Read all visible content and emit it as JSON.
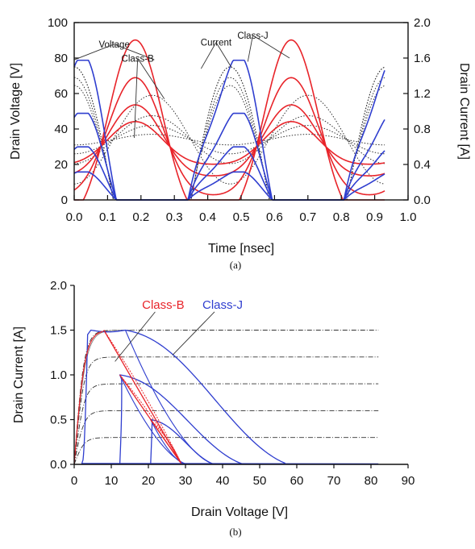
{
  "colors": {
    "class_b": "#e8242a",
    "class_j": "#2f3ecf",
    "reference": "#333333",
    "axis": "#111111"
  },
  "chart_data": [
    {
      "id": "a",
      "type": "line",
      "caption": "(a)",
      "xlabel": "Time [nsec]",
      "ylabel": "Drain Voltage [V]",
      "y2label": "Drain Current [A]",
      "xlim": [
        0,
        1.0
      ],
      "ylim": [
        0,
        100
      ],
      "y2lim": [
        0,
        2.0
      ],
      "xticks": [
        "0.0",
        "0.1",
        "0.2",
        "0.3",
        "0.4",
        "0.5",
        "0.6",
        "0.7",
        "0.8",
        "0.9",
        "1.0"
      ],
      "yticks": [
        "0",
        "20",
        "40",
        "60",
        "80",
        "100"
      ],
      "y2ticks": [
        "0.0",
        "0.4",
        "0.8",
        "1.2",
        "1.6",
        "2.0"
      ],
      "grid": false,
      "period_ns": 0.467,
      "x_end_ns": 0.93,
      "series": [
        {
          "group": "class_b_voltage",
          "style": "dotted",
          "axis": "left",
          "offset_ns": 0.233,
          "base": 34,
          "amplitudes": [
            25,
            13.5,
            8,
            3
          ]
        },
        {
          "group": "class_b_current",
          "style": "dotted",
          "axis": "right",
          "offset_ns": 0.0,
          "peak": 1.5,
          "half_width_ns": 0.117,
          "levels": [
            1.0,
            0.6,
            0.3,
            0.0
          ]
        },
        {
          "group": "class_j_voltage",
          "style": "solid",
          "axis": "left",
          "offset_ns": 0.183,
          "base": 30,
          "amplitudes": [
            51,
            33,
            20,
            12
          ]
        },
        {
          "group": "class_j_current",
          "style": "solid",
          "axis": "right",
          "offset_ns": 0.0,
          "peak": 1.5,
          "levels": [
            1.0,
            0.6,
            0.3,
            0.0
          ]
        }
      ],
      "annotations": [
        {
          "text": "Voltage",
          "at": [
            0.12,
            86
          ],
          "targets": [
            [
              0.0,
              79
            ],
            [
              0.24,
              79
            ]
          ]
        },
        {
          "text": "Class-B",
          "at": [
            0.19,
            78
          ],
          "targets": [
            [
              0.27,
              57
            ],
            [
              0.18,
              35
            ]
          ]
        },
        {
          "text": "Current",
          "at": [
            0.425,
            87
          ],
          "targets": [
            [
              0.38,
              74
            ],
            [
              0.47,
              75
            ]
          ]
        },
        {
          "text": "Class-J",
          "at": [
            0.535,
            91
          ],
          "targets": [
            [
              0.52,
              78
            ],
            [
              0.645,
              80
            ]
          ]
        }
      ]
    },
    {
      "id": "b",
      "type": "line",
      "caption": "(b)",
      "xlabel": "Drain Voltage [V]",
      "ylabel": "Drain Current [A]",
      "xlim": [
        0,
        90
      ],
      "ylim": [
        0,
        2.0
      ],
      "xticks": [
        "0",
        "10",
        "20",
        "30",
        "40",
        "50",
        "60",
        "70",
        "80",
        "90"
      ],
      "yticks": [
        "0.0",
        "0.5",
        "1.0",
        "1.5",
        "2.0"
      ],
      "grid": false,
      "knee_voltage": 3.8,
      "dc_levels": [
        0.3,
        0.6,
        0.9,
        1.2,
        1.5
      ],
      "dc_x_range": [
        3,
        82
      ],
      "class_b_loops": [
        {
          "v_start": 8.0,
          "i_start": 1.5,
          "v_end": 29,
          "i_end": 0.0
        },
        {
          "v_start": 12.3,
          "i_start": 1.0,
          "v_end": 29,
          "i_end": 0.0
        },
        {
          "v_start": 20.6,
          "i_start": 0.5,
          "v_end": 29,
          "i_end": 0.0
        }
      ],
      "class_j_loops": [
        {
          "v_min": 2.0,
          "v_peak": 13.8,
          "i_peak": 1.5,
          "v_zero": 58
        },
        {
          "v_min": 12.3,
          "v_peak": 12.3,
          "i_peak": 1.0,
          "v_zero": 46
        },
        {
          "v_min": 20.6,
          "v_peak": 20.6,
          "i_peak": 0.5,
          "v_zero": 38
        }
      ],
      "annotations": [
        {
          "text": "Class-B",
          "at": [
            24,
            1.74
          ],
          "color": "class_b",
          "target": [
            11,
            1.15
          ]
        },
        {
          "text": "Class-J",
          "at": [
            40,
            1.74
          ],
          "color": "class_j",
          "target": [
            26.5,
            1.22
          ]
        }
      ]
    }
  ]
}
